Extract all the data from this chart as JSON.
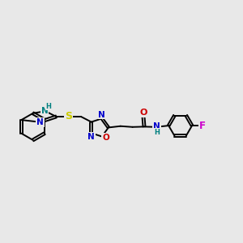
{
  "bg_color": "#e8e8e8",
  "bond_color": "#000000",
  "bond_lw": 1.4,
  "atom_colors": {
    "N": "#0000cc",
    "O": "#cc0000",
    "S": "#cccc00",
    "F": "#cc00cc",
    "NH_teal": "#008080",
    "C": "#000000"
  },
  "font_size": 7.5,
  "fig_bg": "#e8e8e8"
}
